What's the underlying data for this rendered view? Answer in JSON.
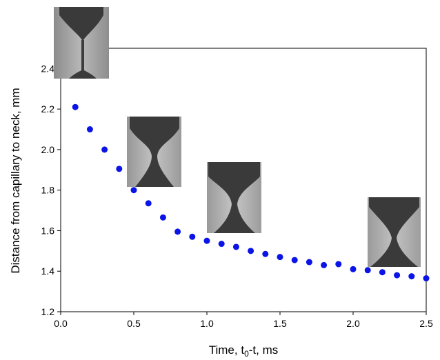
{
  "chart_data": {
    "type": "scatter",
    "title": "",
    "xlabel": {
      "prefix": "Time, t",
      "subscript": "0",
      "suffix": "-t, ms"
    },
    "ylabel": "Distance from capillary to neck, mm",
    "xlim": [
      0,
      2.5
    ],
    "ylim": [
      1.2,
      2.5
    ],
    "x_ticks": [
      "0.0",
      "0.5",
      "1.0",
      "1.5",
      "2.0",
      "2.5"
    ],
    "y_ticks": [
      "1.2",
      "1.4",
      "1.6",
      "1.8",
      "2.0",
      "2.2",
      "2.4"
    ],
    "grid": false,
    "legend": "none",
    "marker_color": "#0a14e6",
    "series": [
      {
        "x": [
          0.1,
          0.2,
          0.3,
          0.4,
          0.5,
          0.6,
          0.7,
          0.8,
          0.9,
          1.0,
          1.1,
          1.2,
          1.3,
          1.4,
          1.5,
          1.6,
          1.7,
          1.8,
          1.9,
          2.0,
          2.1,
          2.2,
          2.3,
          2.4,
          2.5
        ],
        "y": [
          2.21,
          2.1,
          2.0,
          1.905,
          1.8,
          1.735,
          1.665,
          1.595,
          1.57,
          1.55,
          1.535,
          1.52,
          1.5,
          1.485,
          1.47,
          1.455,
          1.445,
          1.43,
          1.435,
          1.41,
          1.405,
          1.395,
          1.38,
          1.375,
          1.365
        ]
      }
    ],
    "insets": [
      {
        "name": "inset-photo-1",
        "description": "drop photograph - long thin thread"
      },
      {
        "name": "inset-photo-2",
        "description": "drop photograph - neck forming"
      },
      {
        "name": "inset-photo-3",
        "description": "drop photograph - neck thinning"
      },
      {
        "name": "inset-photo-4",
        "description": "drop photograph - neck near pinch-off"
      }
    ]
  }
}
